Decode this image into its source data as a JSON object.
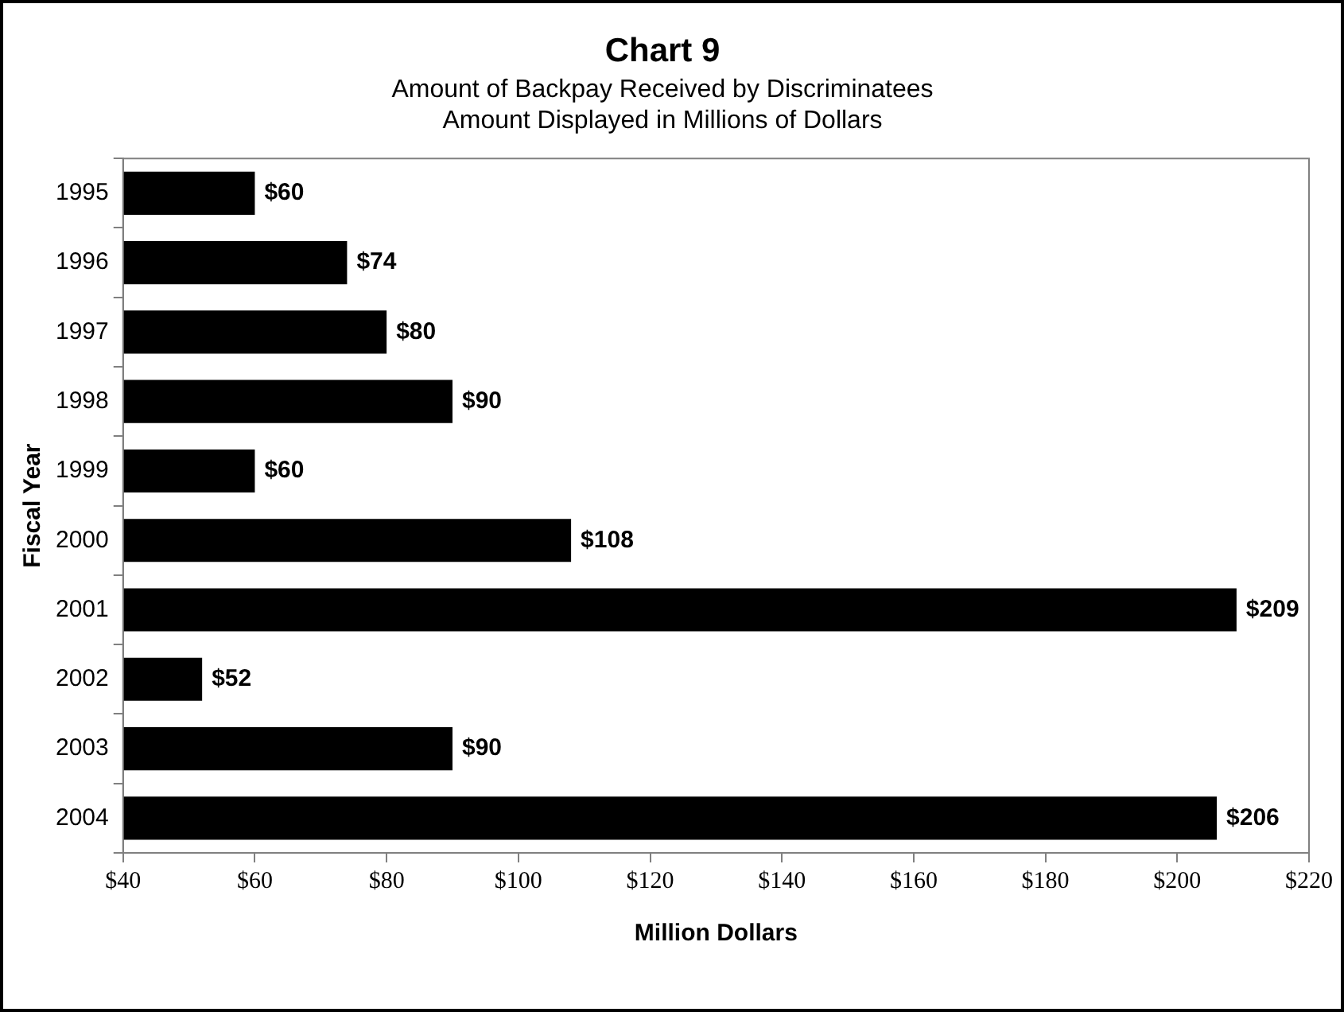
{
  "chart_data": {
    "type": "bar",
    "orientation": "horizontal",
    "title": "Chart 9",
    "subtitle": "Amount of Backpay Received by Discriminatees\nAmount Displayed in Millions of Dollars",
    "xlabel": "Million Dollars",
    "ylabel": "Fiscal Year",
    "categories": [
      "1995",
      "1996",
      "1997",
      "1998",
      "1999",
      "2000",
      "2001",
      "2002",
      "2003",
      "2004"
    ],
    "values": [
      60,
      74,
      80,
      90,
      60,
      108,
      209,
      52,
      90,
      206
    ],
    "value_labels": [
      "$60",
      "$74",
      "$80",
      "$90",
      "$60",
      "$108",
      "$209",
      "$52",
      "$90",
      "$206"
    ],
    "color": "#000000",
    "xlim": [
      40,
      220
    ],
    "xticks": [
      {
        "value": 40,
        "label": "$40"
      },
      {
        "value": 60,
        "label": "$60"
      },
      {
        "value": 80,
        "label": "$80"
      },
      {
        "value": 100,
        "label": "$100"
      },
      {
        "value": 120,
        "label": "$120"
      },
      {
        "value": 140,
        "label": "$140"
      },
      {
        "value": 160,
        "label": "$160"
      },
      {
        "value": 180,
        "label": "$180"
      },
      {
        "value": 200,
        "label": "$200"
      },
      {
        "value": 220,
        "label": "$220"
      }
    ],
    "grid": false,
    "legend": false
  }
}
